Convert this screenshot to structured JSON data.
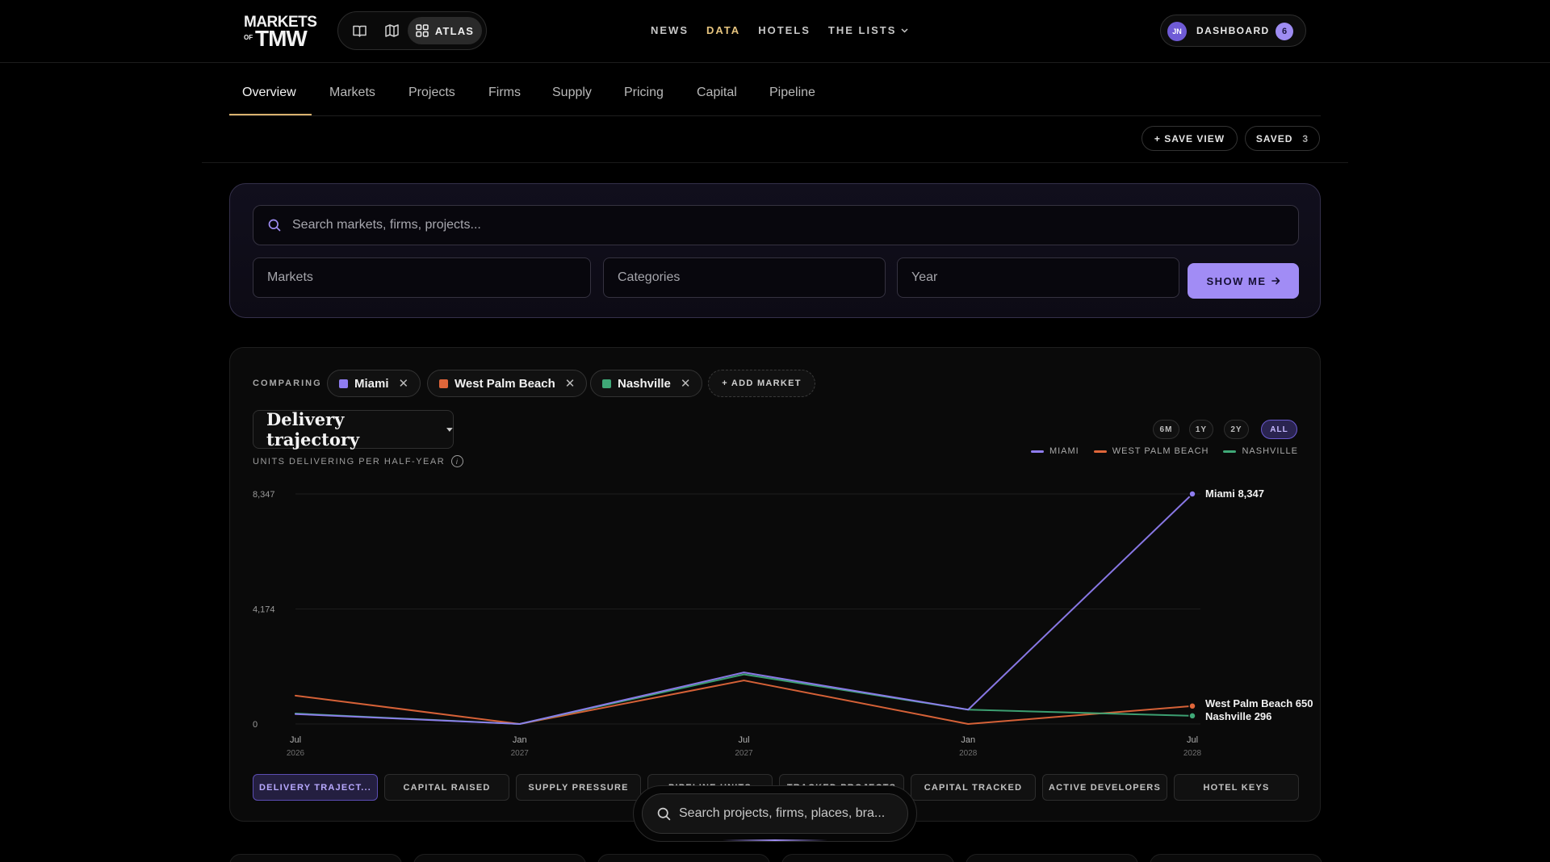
{
  "header": {
    "logo": {
      "line1": "MARKETS",
      "line2": "OF",
      "line3": "TMW"
    },
    "view_switch": {
      "atlas_label": "ATLAS"
    },
    "nav": [
      {
        "label": "NEWS"
      },
      {
        "label": "DATA"
      },
      {
        "label": "HOTELS"
      },
      {
        "label": "THE LISTS"
      }
    ],
    "dashboard": {
      "initials": "JN",
      "label": "DASHBOARD",
      "count": "6"
    }
  },
  "tabs": [
    "Overview",
    "Markets",
    "Projects",
    "Firms",
    "Supply",
    "Pricing",
    "Capital",
    "Pipeline"
  ],
  "actions": {
    "save_view": "+ SAVE VIEW",
    "saved_label": "SAVED",
    "saved_count": "3"
  },
  "search": {
    "placeholder": "Search markets, firms, projects...",
    "markets": "Markets",
    "categories": "Categories",
    "year": "Year",
    "submit": "SHOW ME"
  },
  "comparison": {
    "label": "COMPARING",
    "markets": [
      {
        "name": "Miami",
        "color": "#8f7df0"
      },
      {
        "name": "West Palm Beach",
        "color": "#e0663a"
      },
      {
        "name": "Nashville",
        "color": "#3fa877"
      }
    ],
    "add_label": "+ ADD MARKET"
  },
  "metric": {
    "title": "Delivery trajectory",
    "subtitle": "UNITS DELIVERING PER HALF-YEAR"
  },
  "ranges": [
    "6M",
    "1Y",
    "2Y",
    "ALL"
  ],
  "legend": [
    "MIAMI",
    "WEST PALM BEACH",
    "NASHVILLE"
  ],
  "chart_data": {
    "type": "line",
    "x": [
      "Jul 2026",
      "Jan 2027",
      "Jul 2027",
      "Jan 2028",
      "Jul 2028"
    ],
    "x_ticks": [
      {
        "label": "Jul",
        "year": "2026"
      },
      {
        "label": "Jan",
        "year": "2027"
      },
      {
        "label": "Jul",
        "year": "2027"
      },
      {
        "label": "Jan",
        "year": "2028"
      },
      {
        "label": "Jul",
        "year": "2028"
      }
    ],
    "y_ticks": [
      "8,347",
      "4,174",
      "0"
    ],
    "ylim": [
      0,
      8347
    ],
    "ylabel": "UNITS DELIVERING PER HALF-YEAR",
    "series": [
      {
        "name": "Miami",
        "color": "#8f7df0",
        "values": [
          360,
          0,
          1870,
          520,
          8347
        ],
        "end_label": "Miami 8,347"
      },
      {
        "name": "West Palm Beach",
        "color": "#e0663a",
        "values": [
          1030,
          0,
          1580,
          0,
          650
        ],
        "end_label": "West Palm Beach 650"
      },
      {
        "name": "Nashville",
        "color": "#3fa877",
        "values": [
          380,
          0,
          1800,
          520,
          296
        ],
        "end_label": "Nashville 296"
      }
    ],
    "grid": true
  },
  "metric_tabs": [
    "DELIVERY TRAJECT...",
    "CAPITAL RAISED",
    "SUPPLY PRESSURE",
    "PIPELINE UNITS",
    "TRACKED PROJECTS",
    "CAPITAL TRACKED",
    "ACTIVE DEVELOPERS",
    "HOTEL KEYS"
  ],
  "floating_search": {
    "placeholder": "Search projects, firms, places, bra..."
  }
}
